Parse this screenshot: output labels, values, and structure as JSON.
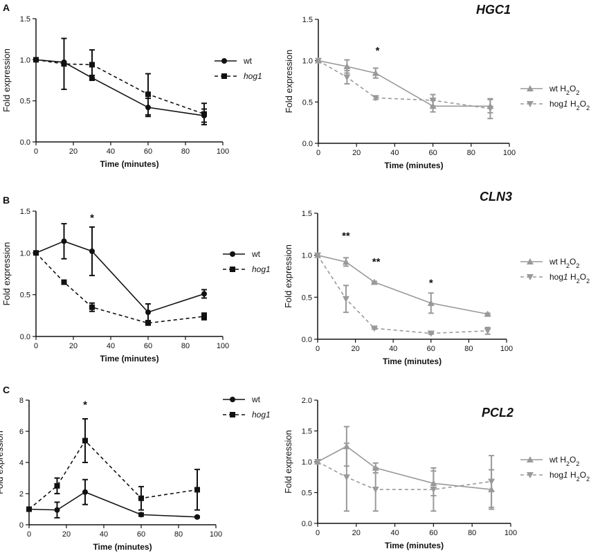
{
  "panel_labels": [
    "A",
    "B",
    "C"
  ],
  "chart_data": [
    {
      "id": "A-left",
      "type": "line",
      "panel": "A",
      "gene": "",
      "ylabel": "Fold expression",
      "xlabel": "Time (minutes)",
      "xlim": [
        0,
        100
      ],
      "ylim": [
        0,
        1.5
      ],
      "xticks": [
        0,
        20,
        40,
        60,
        80,
        100
      ],
      "yticks": [
        0,
        0.5,
        1,
        1.5
      ],
      "ytick_labels": [
        "0.0",
        "0.5",
        "1.0",
        "1.5"
      ],
      "legend": "right",
      "series": [
        {
          "name": "wt",
          "italic": false,
          "color": "#111111",
          "dashed": false,
          "marker": "circle",
          "x": [
            0,
            15,
            30,
            60,
            90
          ],
          "y": [
            1.0,
            0.97,
            0.78,
            0.42,
            0.32
          ],
          "err": [
            0,
            0,
            0.03,
            0.11,
            0.08
          ]
        },
        {
          "name": "hog1",
          "italic": true,
          "color": "#111111",
          "dashed": true,
          "marker": "square",
          "x": [
            0,
            15,
            30,
            60,
            90
          ],
          "y": [
            1.0,
            0.95,
            0.94,
            0.58,
            0.34
          ],
          "err": [
            0,
            0.31,
            0.18,
            0.25,
            0.13
          ]
        }
      ],
      "annotations": []
    },
    {
      "id": "A-right",
      "type": "line",
      "panel": "A",
      "gene": "HGC1",
      "ylabel": "Fold expression",
      "xlabel": "Time (minutes)",
      "xlim": [
        0,
        100
      ],
      "ylim": [
        0,
        1.5
      ],
      "xticks": [
        0,
        20,
        40,
        60,
        80,
        100
      ],
      "yticks": [
        0,
        0.5,
        1,
        1.5
      ],
      "ytick_labels": [
        "0.0",
        "0.5",
        "1.0",
        "1.5"
      ],
      "legend": "right",
      "series": [
        {
          "name": "wt H2O2",
          "label_parts": [
            "wt H",
            "2",
            "O",
            "2"
          ],
          "italic": false,
          "color": "#999999",
          "dashed": false,
          "marker": "triangle-up",
          "x": [
            0,
            15,
            30,
            60,
            90
          ],
          "y": [
            1.0,
            0.93,
            0.85,
            0.45,
            0.45
          ],
          "err": [
            0,
            0.08,
            0.06,
            0.07,
            0.08
          ]
        },
        {
          "name": "hog1 H2O2",
          "label_parts": [
            "hog",
            "1",
            " H",
            "2",
            "O",
            "2"
          ],
          "italic": false,
          "color": "#999999",
          "dashed": true,
          "marker": "triangle-down",
          "x": [
            0,
            15,
            30,
            60,
            90
          ],
          "y": [
            1.0,
            0.8,
            0.55,
            0.52,
            0.42
          ],
          "err": [
            0,
            0.08,
            0.02,
            0.07,
            0.12
          ]
        }
      ],
      "annotations": [
        {
          "x": 31,
          "y": 1.08,
          "text": "*"
        }
      ]
    },
    {
      "id": "B-left",
      "type": "line",
      "panel": "B",
      "gene": "",
      "ylabel": "Fold expression",
      "xlabel": "Time (minutes)",
      "xlim": [
        0,
        100
      ],
      "ylim": [
        0,
        1.5
      ],
      "xticks": [
        0,
        20,
        40,
        60,
        80,
        100
      ],
      "yticks": [
        0,
        0.5,
        1,
        1.5
      ],
      "ytick_labels": [
        "0.0",
        "0.5",
        "1.0",
        "1.5"
      ],
      "legend": "right",
      "series": [
        {
          "name": "wt",
          "italic": false,
          "color": "#111111",
          "dashed": false,
          "marker": "circle",
          "x": [
            0,
            15,
            30,
            60,
            90
          ],
          "y": [
            1.0,
            1.14,
            1.02,
            0.29,
            0.51
          ],
          "err": [
            0,
            0.21,
            0.29,
            0.1,
            0.05
          ]
        },
        {
          "name": "hog1",
          "italic": true,
          "color": "#111111",
          "dashed": true,
          "marker": "square",
          "x": [
            0,
            15,
            30,
            60,
            90
          ],
          "y": [
            1.0,
            0.65,
            0.35,
            0.16,
            0.24
          ],
          "err": [
            0,
            0.01,
            0.05,
            0.01,
            0.04
          ]
        }
      ],
      "annotations": [
        {
          "x": 30,
          "y": 1.38,
          "text": "*"
        }
      ]
    },
    {
      "id": "B-right",
      "type": "line",
      "panel": "B",
      "gene": "CLN3",
      "ylabel": "Fold expression",
      "xlabel": "Time (minutes)",
      "xlim": [
        0,
        100
      ],
      "ylim": [
        0,
        1.5
      ],
      "xticks": [
        0,
        20,
        40,
        60,
        80,
        100
      ],
      "yticks": [
        0,
        0.5,
        1,
        1.5
      ],
      "ytick_labels": [
        "0.0",
        "0.5",
        "1.0",
        "1.5"
      ],
      "legend": "right",
      "series": [
        {
          "name": "wt H2O2",
          "label_parts": [
            "wt H",
            "2",
            "O",
            "2"
          ],
          "italic": false,
          "color": "#999999",
          "dashed": false,
          "marker": "triangle-up",
          "x": [
            0,
            15,
            30,
            60,
            90
          ],
          "y": [
            1.0,
            0.92,
            0.68,
            0.43,
            0.3
          ],
          "err": [
            0,
            0.05,
            0.01,
            0.12,
            0.01
          ]
        },
        {
          "name": "hog1 H2O2",
          "label_parts": [
            "hog",
            "1",
            " H",
            "2",
            "O",
            "2"
          ],
          "italic": false,
          "color": "#999999",
          "dashed": true,
          "marker": "triangle-down",
          "x": [
            0,
            15,
            30,
            60,
            90
          ],
          "y": [
            1.0,
            0.48,
            0.13,
            0.07,
            0.1
          ],
          "err": [
            0,
            0.16,
            0.01,
            0.01,
            0.04
          ]
        }
      ],
      "annotations": [
        {
          "x": 15,
          "y": 1.19,
          "text": "**"
        },
        {
          "x": 31,
          "y": 0.88,
          "text": "**"
        },
        {
          "x": 60,
          "y": 0.63,
          "text": "*"
        }
      ]
    },
    {
      "id": "C-left",
      "type": "line",
      "panel": "C",
      "gene": "",
      "ylabel": "Fold expression",
      "xlabel": "Time (minutes)",
      "xlim": [
        0,
        100
      ],
      "ylim": [
        0,
        8
      ],
      "xticks": [
        0,
        20,
        40,
        60,
        80,
        100
      ],
      "yticks": [
        0,
        2,
        4,
        6,
        8
      ],
      "ytick_labels": [
        "0",
        "2",
        "4",
        "6",
        "8"
      ],
      "legend": "right",
      "series": [
        {
          "name": "wt",
          "italic": false,
          "color": "#111111",
          "dashed": false,
          "marker": "circle",
          "x": [
            0,
            15,
            30,
            60,
            90
          ],
          "y": [
            1.0,
            0.95,
            2.1,
            0.65,
            0.5
          ],
          "err": [
            0,
            0.5,
            0.8,
            0.1,
            0.05
          ]
        },
        {
          "name": "hog1",
          "italic": true,
          "color": "#111111",
          "dashed": true,
          "marker": "square",
          "x": [
            0,
            15,
            30,
            60,
            90
          ],
          "y": [
            1.0,
            2.5,
            5.4,
            1.7,
            2.25
          ],
          "err": [
            0,
            0.5,
            1.4,
            0.75,
            1.3
          ]
        }
      ],
      "annotations": [
        {
          "x": 30,
          "y": 7.5,
          "text": "*"
        }
      ]
    },
    {
      "id": "C-right",
      "type": "line",
      "panel": "C",
      "gene": "PCL2",
      "ylabel": "Fold expression",
      "xlabel": "Time (minutes)",
      "xlim": [
        0,
        100
      ],
      "ylim": [
        0,
        2
      ],
      "xticks": [
        0,
        20,
        40,
        60,
        80,
        100
      ],
      "yticks": [
        0,
        0.5,
        1,
        1.5,
        2
      ],
      "ytick_labels": [
        "0.0",
        "0.5",
        "1.0",
        "1.5",
        "2.0"
      ],
      "legend": "right",
      "series": [
        {
          "name": "wt H2O2",
          "label_parts": [
            "wt H",
            "2",
            "O",
            "2"
          ],
          "italic": false,
          "color": "#999999",
          "dashed": false,
          "marker": "triangle-up",
          "x": [
            0,
            15,
            30,
            60,
            90
          ],
          "y": [
            1.0,
            1.25,
            0.9,
            0.65,
            0.55
          ],
          "err": [
            0,
            0.32,
            0.08,
            0.2,
            0.32
          ]
        },
        {
          "name": "hog1 H2O2",
          "label_parts": [
            "hog",
            "1",
            " H",
            "2",
            "O",
            "2"
          ],
          "italic": false,
          "color": "#999999",
          "dashed": true,
          "marker": "triangle-down",
          "x": [
            0,
            15,
            30,
            60,
            90
          ],
          "y": [
            1.0,
            0.75,
            0.55,
            0.55,
            0.68
          ],
          "err": [
            0,
            0.55,
            0.35,
            0.35,
            0.42
          ]
        }
      ],
      "annotations": []
    }
  ]
}
